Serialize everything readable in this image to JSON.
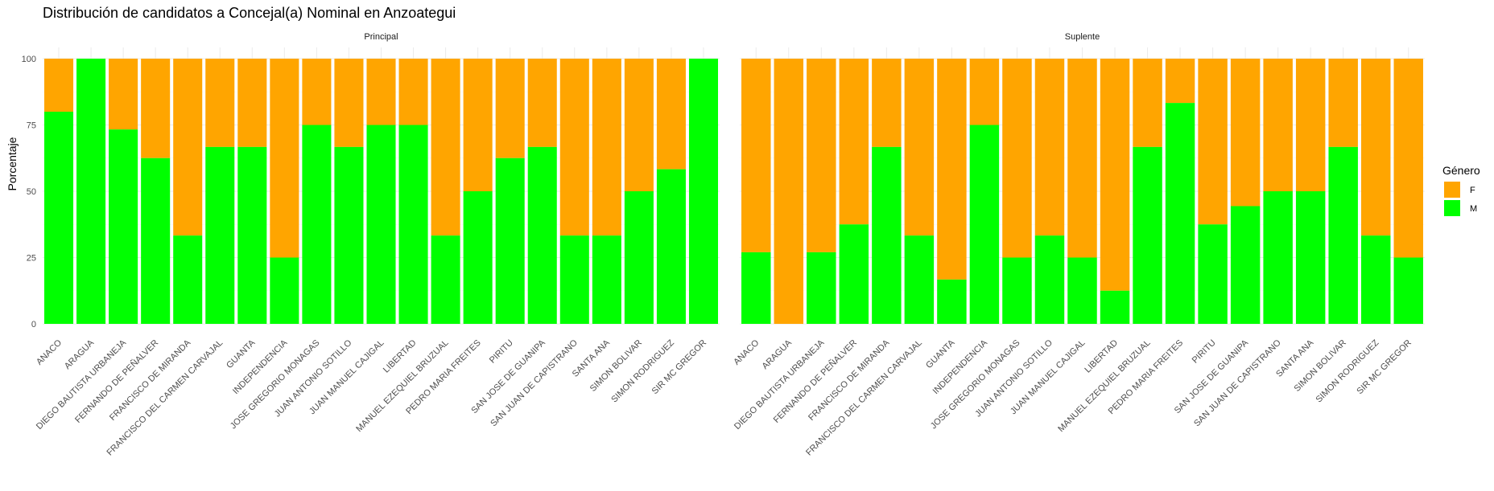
{
  "chart_data": {
    "type": "bar",
    "stacked": true,
    "title": "Distribución de candidatos a Concejal(a) Nominal en Anzoategui",
    "xlabel": "",
    "ylabel": "Porcentaje",
    "ylim": [
      0,
      100
    ],
    "yticks": [
      "0",
      "25",
      "50",
      "75",
      "100"
    ],
    "legend": {
      "title": "Género",
      "position": "right",
      "entries": [
        {
          "key": "F",
          "label": "F",
          "color": "#FFA500"
        },
        {
          "key": "M",
          "label": "M",
          "color": "#00FF00"
        }
      ]
    },
    "grid": true,
    "categories": [
      "ANACO",
      "ARAGUA",
      "DIEGO BAUTISTA URBANEJA",
      "FERNANDO DE PEÑALVER",
      "FRANCISCO DE MIRANDA",
      "FRANCISCO DEL CARMEN CARVAJAL",
      "GUANTA",
      "INDEPENDENCIA",
      "JOSE GREGORIO MONAGAS",
      "JUAN ANTONIO SOTILLO",
      "JUAN MANUEL CAJIGAL",
      "LIBERTAD",
      "MANUEL EZEQUIEL BRUZUAL",
      "PEDRO MARIA FREITES",
      "PIRITU",
      "SAN JOSE DE GUANIPA",
      "SAN JUAN DE CAPISTRANO",
      "SANTA ANA",
      "SIMON BOLIVAR",
      "SIMON RODRIGUEZ",
      "SIR MC GREGOR"
    ],
    "facets": [
      {
        "name": "Principal",
        "series": [
          {
            "name": "M",
            "values": [
              80,
              100,
              73.3,
              62.5,
              33.3,
              66.7,
              66.7,
              25,
              75,
              66.7,
              75,
              75,
              33.3,
              50,
              62.5,
              66.7,
              33.3,
              33.3,
              50,
              58.3,
              100
            ]
          },
          {
            "name": "F",
            "values": [
              20,
              0,
              26.7,
              37.5,
              66.7,
              33.3,
              33.3,
              75,
              25,
              33.3,
              25,
              25,
              66.7,
              50,
              37.5,
              33.3,
              66.7,
              66.7,
              50,
              41.7,
              0
            ]
          }
        ]
      },
      {
        "name": "Suplente",
        "series": [
          {
            "name": "M",
            "values": [
              27,
              0,
              27,
              37.5,
              66.7,
              33.3,
              16.7,
              75,
              25,
              33.3,
              25,
              12.5,
              66.7,
              83.3,
              37.5,
              44.4,
              50,
              50,
              66.7,
              33.3,
              25
            ]
          },
          {
            "name": "F",
            "values": [
              73,
              100,
              73,
              62.5,
              33.3,
              66.7,
              83.3,
              25,
              75,
              66.7,
              75,
              87.5,
              33.3,
              16.7,
              62.5,
              55.6,
              50,
              50,
              33.3,
              66.7,
              75
            ]
          }
        ]
      }
    ]
  }
}
